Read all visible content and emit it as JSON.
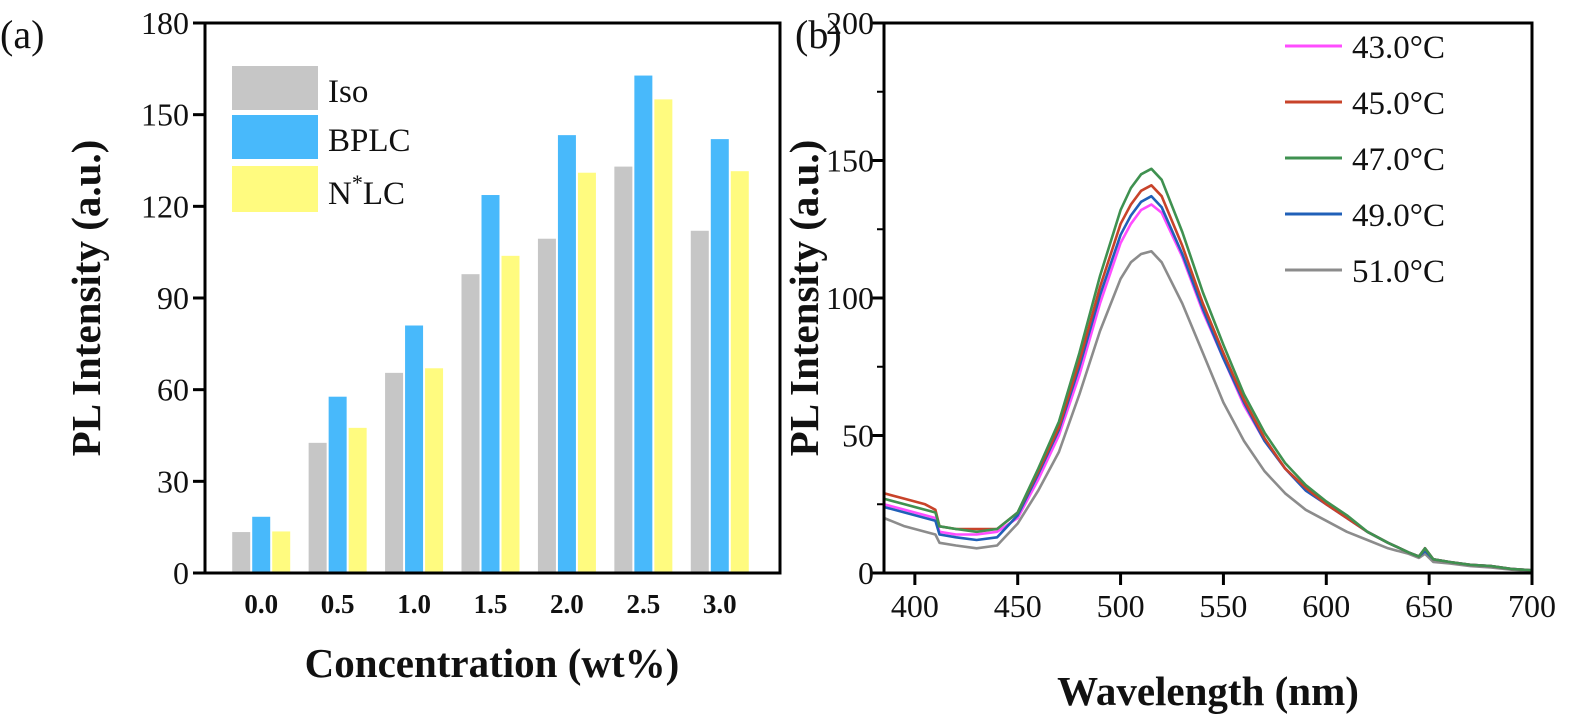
{
  "chart_data": [
    {
      "panel_label": "(a)",
      "type": "bar",
      "xlabel": "Concentration (wt%)",
      "ylabel": "PL Intensity (a.u.)",
      "ylim": [
        0,
        180
      ],
      "yticks": [
        "0",
        "30",
        "60",
        "90",
        "120",
        "150",
        "180"
      ],
      "categories": [
        "0.0",
        "0.5",
        "1.0",
        "1.5",
        "2.0",
        "2.5",
        "3.0"
      ],
      "grid": false,
      "legend_position": "top-left",
      "series": [
        {
          "name": "Iso",
          "color": "#c6c6c6",
          "values": [
            13.4,
            42.6,
            65.5,
            97.8,
            109.4,
            133,
            112
          ]
        },
        {
          "name": "BPLC",
          "color": "#48b9fb",
          "values": [
            18.4,
            57.7,
            81,
            123.7,
            143.3,
            162.8,
            142
          ]
        },
        {
          "name": "N*LC",
          "name_base": "N",
          "name_sup": "*",
          "name_rest": "LC",
          "color": "#fffb7f",
          "values": [
            13.6,
            47.5,
            67,
            103.8,
            131,
            155,
            131.5
          ]
        }
      ]
    },
    {
      "panel_label": "(b)",
      "type": "line",
      "xlabel": "Wavelength (nm)",
      "ylabel": "PL Intensity (a.u.)",
      "xlim": [
        385,
        700
      ],
      "ylim": [
        0,
        200
      ],
      "xticks": [
        "400",
        "450",
        "500",
        "550",
        "600",
        "650",
        "700"
      ],
      "yticks": [
        "0",
        "50",
        "100",
        "150",
        "200"
      ],
      "grid": false,
      "legend_position": "top-right",
      "x": [
        385,
        395,
        405,
        410,
        412,
        420,
        430,
        440,
        450,
        460,
        470,
        480,
        490,
        500,
        505,
        510,
        515,
        520,
        530,
        540,
        550,
        560,
        570,
        580,
        590,
        600,
        610,
        620,
        630,
        640,
        645,
        648,
        652,
        660,
        670,
        680,
        690,
        700
      ],
      "series": [
        {
          "name": "43.0°C",
          "color": "#ff4dff",
          "values": [
            25,
            23,
            21,
            20,
            15,
            14,
            14,
            15,
            20,
            34,
            50,
            72,
            98,
            120,
            127,
            132,
            134,
            131,
            115,
            95,
            78,
            61,
            48,
            38,
            30,
            25,
            20,
            15,
            11,
            7.5,
            6,
            9,
            5,
            4,
            3,
            2.5,
            1.5,
            1
          ]
        },
        {
          "name": "45.0°C",
          "color": "#c8432a",
          "values": [
            29,
            27,
            25,
            23,
            17,
            16,
            16,
            16,
            22,
            37,
            53,
            77,
            104,
            127,
            134,
            139,
            141,
            137,
            119,
            98,
            80,
            63,
            49,
            38,
            31,
            25,
            20,
            15,
            11,
            7.5,
            6,
            9,
            5,
            4,
            3,
            2.5,
            1.5,
            1
          ]
        },
        {
          "name": "47.0°C",
          "color": "#3f9150",
          "values": [
            27,
            25,
            23,
            22,
            17,
            16,
            15,
            16,
            22,
            38,
            55,
            80,
            108,
            132,
            140,
            145,
            147,
            143,
            124,
            102,
            83,
            65,
            51,
            40,
            32,
            26,
            21,
            15,
            11,
            7.5,
            6,
            9,
            5,
            4,
            3,
            2.5,
            1.5,
            1
          ]
        },
        {
          "name": "49.0°C",
          "color": "#2060b8",
          "values": [
            24,
            22,
            20,
            19,
            14,
            13,
            12,
            13,
            21,
            36,
            52,
            75,
            101,
            123,
            130,
            135,
            137,
            133,
            116,
            96,
            78,
            62,
            48,
            38,
            30,
            25,
            20,
            15,
            11,
            7.5,
            6,
            8,
            5,
            4,
            3,
            2.5,
            1.5,
            1
          ]
        },
        {
          "name": "51.0°C",
          "color": "#8c8c8c",
          "values": [
            20,
            17,
            15,
            14,
            11,
            10,
            9,
            10,
            18,
            30,
            44,
            65,
            88,
            107,
            113,
            116,
            117,
            113,
            98,
            80,
            62,
            48,
            37,
            29,
            23,
            19,
            15,
            12,
            9,
            7,
            5.5,
            7,
            4,
            3.5,
            2.5,
            2,
            1.2,
            0.8
          ]
        }
      ]
    }
  ]
}
